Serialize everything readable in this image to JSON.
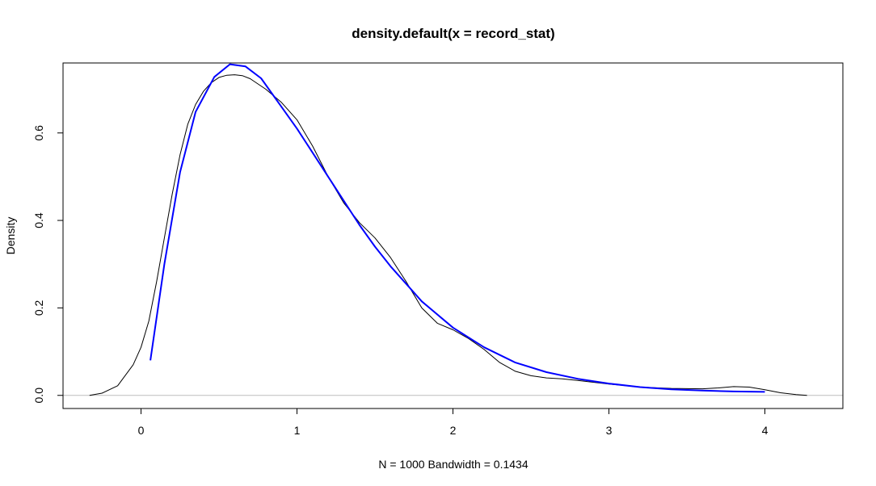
{
  "chart_data": {
    "type": "line",
    "title": "density.default(x = record_stat)",
    "xlabel": "N = 1000   Bandwidth = 0.1434",
    "ylabel": "Density",
    "xlim": [
      -0.5,
      4.5
    ],
    "ylim": [
      -0.03,
      0.76
    ],
    "x_ticks": [
      0,
      1,
      2,
      3,
      4
    ],
    "x_tick_labels": [
      "0",
      "1",
      "2",
      "3",
      "4"
    ],
    "y_ticks": [
      0.0,
      0.2,
      0.4,
      0.6
    ],
    "y_tick_labels": [
      "0.0",
      "0.2",
      "0.4",
      "0.6"
    ],
    "zero_line": true,
    "grid": false,
    "series": [
      {
        "color": "#000000",
        "line_width": 1,
        "x": [
          -0.33,
          -0.25,
          -0.15,
          -0.05,
          0.0,
          0.05,
          0.1,
          0.15,
          0.2,
          0.25,
          0.3,
          0.35,
          0.4,
          0.45,
          0.5,
          0.55,
          0.6,
          0.65,
          0.7,
          0.8,
          0.9,
          1.0,
          1.1,
          1.2,
          1.3,
          1.4,
          1.5,
          1.6,
          1.7,
          1.8,
          1.9,
          2.0,
          2.1,
          2.2,
          2.3,
          2.4,
          2.5,
          2.6,
          2.7,
          2.8,
          2.9,
          3.0,
          3.2,
          3.4,
          3.6,
          3.7,
          3.8,
          3.9,
          4.0,
          4.1,
          4.2,
          4.27
        ],
        "y": [
          0.0,
          0.005,
          0.022,
          0.07,
          0.11,
          0.17,
          0.26,
          0.36,
          0.46,
          0.55,
          0.62,
          0.665,
          0.695,
          0.715,
          0.727,
          0.732,
          0.733,
          0.731,
          0.724,
          0.7,
          0.67,
          0.63,
          0.57,
          0.5,
          0.44,
          0.395,
          0.36,
          0.315,
          0.26,
          0.2,
          0.165,
          0.15,
          0.13,
          0.105,
          0.075,
          0.055,
          0.045,
          0.04,
          0.038,
          0.034,
          0.03,
          0.026,
          0.019,
          0.016,
          0.015,
          0.017,
          0.02,
          0.019,
          0.013,
          0.006,
          0.002,
          0.0
        ]
      },
      {
        "color": "#0000ff",
        "line_width": 2,
        "x": [
          0.06,
          0.15,
          0.25,
          0.35,
          0.47,
          0.57,
          0.67,
          0.77,
          0.9,
          1.0,
          1.1,
          1.2,
          1.3,
          1.4,
          1.5,
          1.6,
          1.7,
          1.8,
          2.0,
          2.2,
          2.4,
          2.6,
          2.8,
          3.0,
          3.2,
          3.4,
          3.6,
          3.8,
          4.0
        ],
        "y": [
          0.08,
          0.3,
          0.51,
          0.648,
          0.728,
          0.757,
          0.752,
          0.725,
          0.66,
          0.61,
          0.555,
          0.5,
          0.445,
          0.39,
          0.34,
          0.295,
          0.255,
          0.215,
          0.155,
          0.11,
          0.075,
          0.053,
          0.038,
          0.027,
          0.019,
          0.014,
          0.011,
          0.009,
          0.008
        ]
      }
    ]
  }
}
